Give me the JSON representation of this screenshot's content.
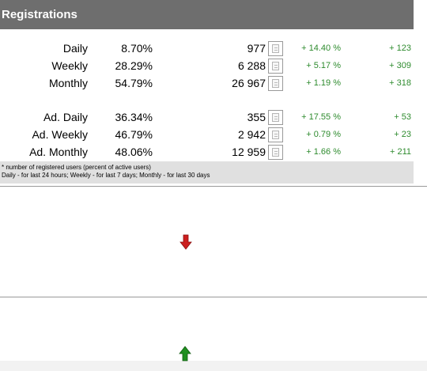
{
  "registrations": {
    "title": "Registrations",
    "rows": [
      {
        "label": "Daily",
        "percent": "8.70%",
        "count": "977",
        "change_pct": "+ 14.40 %",
        "change_abs": "+ 123"
      },
      {
        "label": "Weekly",
        "percent": "28.29%",
        "count": "6 288",
        "change_pct": "+ 5.17 %",
        "change_abs": "+ 309"
      },
      {
        "label": "Monthly",
        "percent": "54.79%",
        "count": "26 967",
        "change_pct": "+ 1.19 %",
        "change_abs": "+ 318"
      },
      {
        "label": "Ad. Daily",
        "percent": "36.34%",
        "count": "355",
        "change_pct": "+ 17.55 %",
        "change_abs": "+ 53"
      },
      {
        "label": "Ad. Weekly",
        "percent": "46.79%",
        "count": "2 942",
        "change_pct": "+ 0.79 %",
        "change_abs": "+ 23"
      },
      {
        "label": "Ad. Monthly",
        "percent": "48.06%",
        "count": "12 959",
        "change_pct": "+ 1.66 %",
        "change_abs": "+ 211"
      }
    ],
    "footnote_line1": "* number of registered users (percent of active users)",
    "footnote_line2": "Daily - for last 24 hours; Weekly - for last 7 days; Monthly - for last 30 days"
  },
  "colors": {
    "header_bg": "#6e6e6e",
    "positive_change": "#2e8b2e",
    "arrow_down": "#cc1f1f",
    "arrow_up": "#1f8f1f"
  },
  "icons": {
    "row_action": "document-icon",
    "trend_down": "arrow-down-icon",
    "trend_up": "arrow-up-icon"
  }
}
